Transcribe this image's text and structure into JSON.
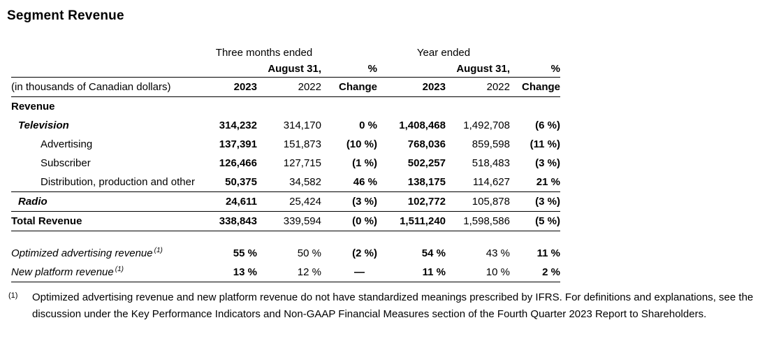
{
  "title": "Segment Revenue",
  "table": {
    "group_headers": {
      "three_months": "Three months ended",
      "year": "Year ended"
    },
    "date_headers": {
      "left_date": "August 31,",
      "left_pct": "%",
      "right_date": "August 31,",
      "right_pct": "%"
    },
    "column_headers": {
      "label": "(in thousands of Canadian dollars)",
      "cols": [
        "2023",
        "2022",
        "Change",
        "2023",
        "2022",
        "Change"
      ]
    },
    "rows": [
      {
        "label": "Revenue",
        "cells": [
          "",
          "",
          "",
          "",
          "",
          ""
        ]
      },
      {
        "label": "Television",
        "cells": [
          "314,232",
          "314,170",
          "0 %",
          "1,408,468",
          "1,492,708",
          "(6 %)"
        ]
      },
      {
        "label": "Advertising",
        "cells": [
          "137,391",
          "151,873",
          "(10 %)",
          "768,036",
          "859,598",
          "(11 %)"
        ]
      },
      {
        "label": "Subscriber",
        "cells": [
          "126,466",
          "127,715",
          "(1 %)",
          "502,257",
          "518,483",
          "(3 %)"
        ]
      },
      {
        "label": "Distribution, production and other",
        "cells": [
          "50,375",
          "34,582",
          "46 %",
          "138,175",
          "114,627",
          "21 %"
        ]
      },
      {
        "label": "Radio",
        "cells": [
          "24,611",
          "25,424",
          "(3 %)",
          "102,772",
          "105,878",
          "(3 %)"
        ]
      },
      {
        "label": "Total Revenue",
        "cells": [
          "338,843",
          "339,594",
          "(0 %)",
          "1,511,240",
          "1,598,586",
          "(5 %)"
        ]
      },
      {
        "label": "Optimized advertising revenue",
        "sup": "(1)",
        "cells": [
          "55 %",
          "50 %",
          "(2 %)",
          "54 %",
          "43 %",
          "11 %"
        ]
      },
      {
        "label": "New platform revenue",
        "sup": "(1)",
        "cells": [
          "13 %",
          "12 %",
          "—",
          "11 %",
          "10 %",
          "2 %"
        ]
      }
    ]
  },
  "footnote": {
    "marker": "(1)",
    "text": "Optimized advertising revenue and new platform revenue do not have standardized meanings prescribed by IFRS. For definitions and explanations, see the discussion under the Key Performance Indicators and Non-GAAP Financial Measures section of the Fourth Quarter 2023 Report to Shareholders."
  }
}
